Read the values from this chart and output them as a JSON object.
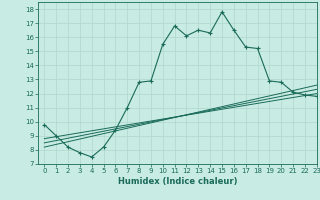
{
  "title": "",
  "xlabel": "Humidex (Indice chaleur)",
  "bg_color": "#c8ebe3",
  "line_color": "#1a6b5a",
  "grid_color": "#b0d8cc",
  "xlim": [
    -0.5,
    23
  ],
  "ylim": [
    7,
    18.5
  ],
  "xticks": [
    0,
    1,
    2,
    3,
    4,
    5,
    6,
    7,
    8,
    9,
    10,
    11,
    12,
    13,
    14,
    15,
    16,
    17,
    18,
    19,
    20,
    21,
    22,
    23
  ],
  "yticks": [
    7,
    8,
    9,
    10,
    11,
    12,
    13,
    14,
    15,
    16,
    17,
    18
  ],
  "series1_x": [
    0,
    1,
    2,
    3,
    4,
    5,
    6,
    7,
    8,
    9,
    10,
    11,
    12,
    13,
    14,
    15,
    16,
    17,
    18,
    19,
    20,
    21,
    22,
    23
  ],
  "series1_y": [
    9.8,
    9.0,
    8.2,
    7.8,
    7.5,
    8.2,
    9.4,
    11.0,
    12.8,
    12.9,
    15.5,
    16.8,
    16.1,
    16.5,
    16.3,
    17.8,
    16.5,
    15.3,
    15.2,
    12.9,
    12.8,
    12.1,
    11.9,
    11.8
  ],
  "series2_x": [
    0,
    23
  ],
  "series2_y": [
    8.8,
    12.0
  ],
  "series3_x": [
    0,
    23
  ],
  "series3_y": [
    8.5,
    12.3
  ],
  "series4_x": [
    0,
    23
  ],
  "series4_y": [
    8.2,
    12.6
  ],
  "xlabel_fontsize": 6,
  "tick_fontsize": 5
}
